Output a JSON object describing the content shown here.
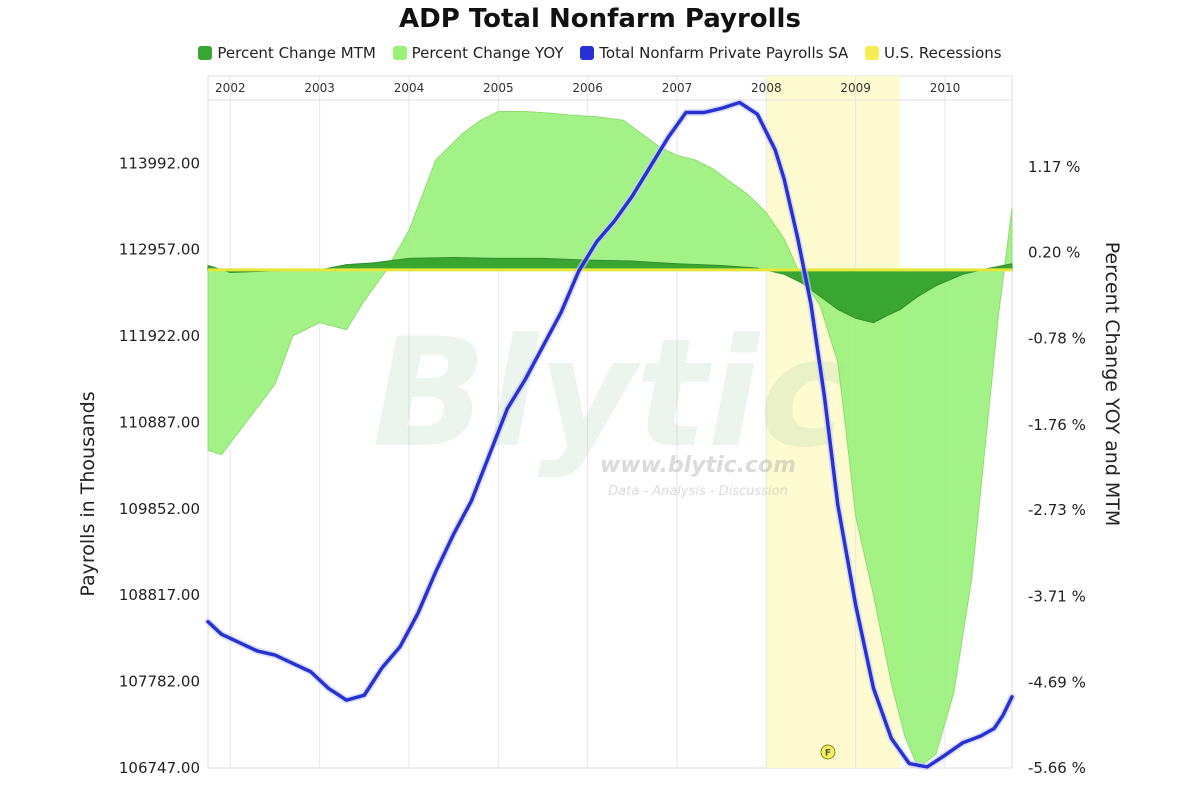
{
  "chart_data": {
    "type": "area",
    "title": "ADP Total Nonfarm Payrolls",
    "legend_position": "top",
    "watermark": {
      "name": "Blytic",
      "url": "www.blytic.com",
      "tagline": "Data - Analysis - Discussion"
    },
    "recession_marker": "F",
    "x_labels": [
      "2002",
      "2003",
      "2004",
      "2005",
      "2006",
      "2007",
      "2008",
      "2009",
      "2010"
    ],
    "x_range": [
      2001.75,
      2010.75
    ],
    "recession": {
      "start": 2008.0,
      "end": 2009.5
    },
    "left_axis": {
      "label": "Payrolls in Thousands",
      "ticks": [
        "113992.00",
        "112957.00",
        "111922.00",
        "110887.00",
        "109852.00",
        "108817.00",
        "107782.00",
        "106747.00"
      ],
      "range": [
        106747,
        114750
      ]
    },
    "right_axis": {
      "label": "Percent Change YOY and MTM",
      "ticks": [
        "1.17 %",
        "0.20 %",
        "-0.78 %",
        "-1.76 %",
        "-2.73 %",
        "-3.71 %",
        "-4.69 %",
        "-5.66 %"
      ],
      "range": [
        -5.66,
        1.93
      ]
    },
    "colors": {
      "mtm": "#3aa632",
      "yoy": "#99f17a",
      "payrolls": "#2632d4",
      "recession": "#fffbd1",
      "recession_legend": "#f5ef55",
      "zero_line": "#e5e83a"
    },
    "series": [
      {
        "name": "Percent Change MTM",
        "axis": "right",
        "x": [
          2001.75,
          2002.0,
          2002.5,
          2003.0,
          2003.3,
          2003.6,
          2004.0,
          2004.5,
          2005.0,
          2005.5,
          2006.0,
          2006.5,
          2007.0,
          2007.5,
          2007.9,
          2008.2,
          2008.4,
          2008.6,
          2008.8,
          2009.0,
          2009.2,
          2009.35,
          2009.5,
          2009.7,
          2009.9,
          2010.2,
          2010.5,
          2010.75
        ],
        "values": [
          0.05,
          -0.03,
          -0.01,
          0.0,
          0.06,
          0.08,
          0.13,
          0.14,
          0.13,
          0.13,
          0.11,
          0.1,
          0.07,
          0.05,
          0.02,
          -0.05,
          -0.15,
          -0.3,
          -0.45,
          -0.55,
          -0.6,
          -0.52,
          -0.45,
          -0.3,
          -0.18,
          -0.05,
          0.02,
          0.07
        ]
      },
      {
        "name": "Percent Change YOY",
        "axis": "right",
        "x": [
          2001.75,
          2001.9,
          2002.2,
          2002.5,
          2002.7,
          2003.0,
          2003.3,
          2003.5,
          2003.75,
          2004.0,
          2004.3,
          2004.6,
          2004.8,
          2005.0,
          2005.3,
          2005.6,
          2005.8,
          2006.1,
          2006.4,
          2006.6,
          2006.8,
          2007.0,
          2007.2,
          2007.4,
          2007.6,
          2007.8,
          2008.0,
          2008.2,
          2008.4,
          2008.6,
          2008.8,
          2008.9,
          2009.0,
          2009.2,
          2009.4,
          2009.55,
          2009.7,
          2009.9,
          2010.1,
          2010.3,
          2010.5,
          2010.6,
          2010.75
        ],
        "values": [
          -2.05,
          -2.1,
          -1.7,
          -1.3,
          -0.75,
          -0.6,
          -0.68,
          -0.35,
          0.0,
          0.45,
          1.25,
          1.55,
          1.7,
          1.8,
          1.8,
          1.78,
          1.76,
          1.74,
          1.7,
          1.55,
          1.4,
          1.3,
          1.25,
          1.15,
          1.0,
          0.85,
          0.65,
          0.35,
          -0.1,
          -0.4,
          -1.05,
          -1.9,
          -2.8,
          -3.7,
          -4.7,
          -5.3,
          -5.66,
          -5.5,
          -4.8,
          -3.5,
          -1.5,
          -0.5,
          0.7
        ]
      },
      {
        "name": "Total Nonfarm Private Payrolls SA",
        "axis": "left",
        "x": [
          2001.75,
          2001.9,
          2002.1,
          2002.3,
          2002.5,
          2002.7,
          2002.9,
          2003.1,
          2003.3,
          2003.5,
          2003.7,
          2003.9,
          2004.1,
          2004.3,
          2004.5,
          2004.7,
          2004.9,
          2005.1,
          2005.3,
          2005.5,
          2005.7,
          2005.9,
          2006.1,
          2006.3,
          2006.5,
          2006.7,
          2006.9,
          2007.1,
          2007.3,
          2007.5,
          2007.7,
          2007.9,
          2008.1,
          2008.2,
          2008.35,
          2008.5,
          2008.65,
          2008.8,
          2009.0,
          2009.2,
          2009.4,
          2009.6,
          2009.8,
          2010.0,
          2010.2,
          2010.4,
          2010.55,
          2010.65,
          2010.75
        ],
        "values": [
          108500,
          108350,
          108250,
          108150,
          108100,
          108000,
          107900,
          107700,
          107560,
          107620,
          107950,
          108200,
          108600,
          109100,
          109550,
          109950,
          110500,
          111050,
          111400,
          111800,
          112200,
          112700,
          113050,
          113300,
          113600,
          113950,
          114300,
          114600,
          114600,
          114650,
          114720,
          114580,
          114150,
          113800,
          113100,
          112300,
          111200,
          109900,
          108700,
          107700,
          107100,
          106800,
          106760,
          106900,
          107050,
          107130,
          107220,
          107380,
          107600
        ]
      }
    ]
  }
}
